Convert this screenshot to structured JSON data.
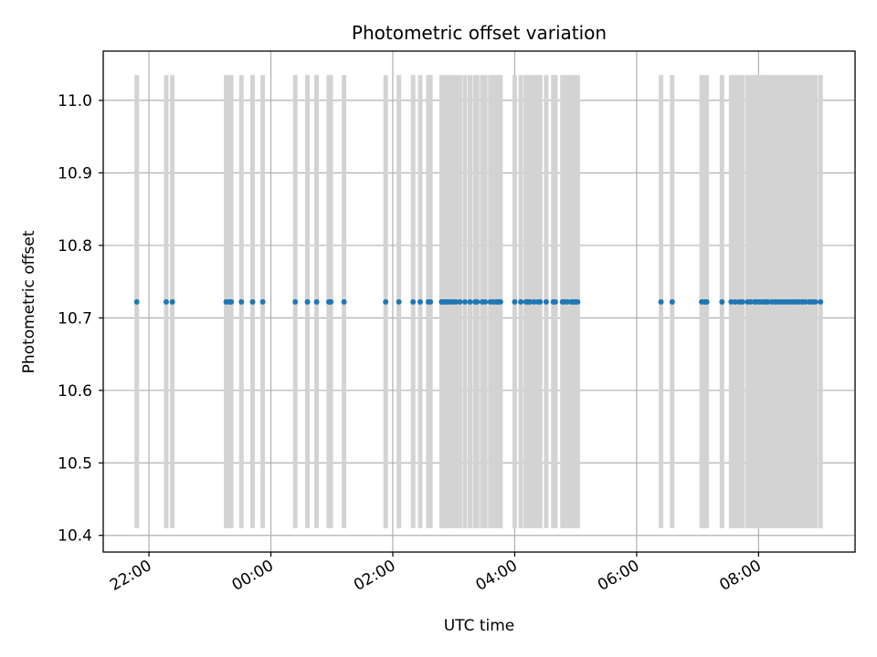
{
  "chart_data": {
    "type": "scatter",
    "title": "Photometric offset variation",
    "xlabel": "UTC time",
    "ylabel": "Photometric offset",
    "x_axis": {
      "type": "time",
      "range": [
        "21:15",
        "09:35"
      ],
      "ticks": [
        "22:00",
        "00:00",
        "02:00",
        "04:00",
        "06:00",
        "08:00"
      ]
    },
    "y_axis": {
      "range": [
        10.377,
        11.068
      ],
      "ticks": [
        "10.4",
        "10.5",
        "10.6",
        "10.7",
        "10.8",
        "10.9",
        "11.0"
      ]
    },
    "grid": true,
    "colors": {
      "points": "#1f77b4",
      "error_bars": "#d3d3d3",
      "grid": "#b0b0b0"
    },
    "error_bars": {
      "lower": 10.41,
      "upper": 11.035
    },
    "series": [
      {
        "times": [
          "21:48",
          "22:17",
          "22:23",
          "23:16",
          "23:19",
          "23:21",
          "23:31",
          "23:42",
          "23:52",
          "00:24",
          "00:36",
          "00:45",
          "00:57",
          "00:59",
          "01:12",
          "01:53",
          "02:06",
          "02:20",
          "02:27",
          "02:35",
          "02:37",
          "02:48",
          "02:50",
          "02:52",
          "02:54",
          "02:56",
          "02:59",
          "03:02",
          "03:06",
          "03:11",
          "03:16",
          "03:21",
          "03:23",
          "03:28",
          "03:31",
          "03:36",
          "03:39",
          "03:42",
          "03:44",
          "03:46",
          "04:00",
          "04:06",
          "04:11",
          "04:13",
          "04:15",
          "04:19",
          "04:23",
          "04:25",
          "04:31",
          "04:38",
          "04:40",
          "04:47",
          "04:49",
          "04:52",
          "04:56",
          "04:58",
          "05:00",
          "05:02",
          "06:24",
          "06:35",
          "07:04",
          "07:07",
          "07:09",
          "07:24",
          "07:33",
          "07:37",
          "07:41",
          "07:44",
          "07:49",
          "07:52",
          "07:56",
          "07:58",
          "08:01",
          "08:04",
          "08:07",
          "08:09",
          "08:13",
          "08:16",
          "08:19",
          "08:22",
          "08:25",
          "08:28",
          "08:31",
          "08:34",
          "08:37",
          "08:40",
          "08:43",
          "08:46",
          "08:50",
          "08:53",
          "08:56",
          "09:01"
        ],
        "values": [
          10.722,
          10.722,
          10.722,
          10.722,
          10.722,
          10.722,
          10.722,
          10.722,
          10.722,
          10.722,
          10.722,
          10.722,
          10.722,
          10.722,
          10.722,
          10.722,
          10.722,
          10.722,
          10.722,
          10.722,
          10.722,
          10.722,
          10.722,
          10.722,
          10.722,
          10.722,
          10.722,
          10.722,
          10.722,
          10.722,
          10.722,
          10.722,
          10.722,
          10.722,
          10.722,
          10.722,
          10.722,
          10.722,
          10.722,
          10.722,
          10.722,
          10.722,
          10.722,
          10.722,
          10.722,
          10.722,
          10.722,
          10.722,
          10.722,
          10.722,
          10.722,
          10.722,
          10.722,
          10.722,
          10.722,
          10.722,
          10.722,
          10.722,
          10.722,
          10.722,
          10.722,
          10.722,
          10.722,
          10.722,
          10.722,
          10.722,
          10.722,
          10.722,
          10.722,
          10.722,
          10.722,
          10.722,
          10.722,
          10.722,
          10.722,
          10.722,
          10.722,
          10.722,
          10.722,
          10.722,
          10.722,
          10.722,
          10.722,
          10.722,
          10.722,
          10.722,
          10.722,
          10.722,
          10.722,
          10.722,
          10.722,
          10.722
        ]
      }
    ]
  }
}
